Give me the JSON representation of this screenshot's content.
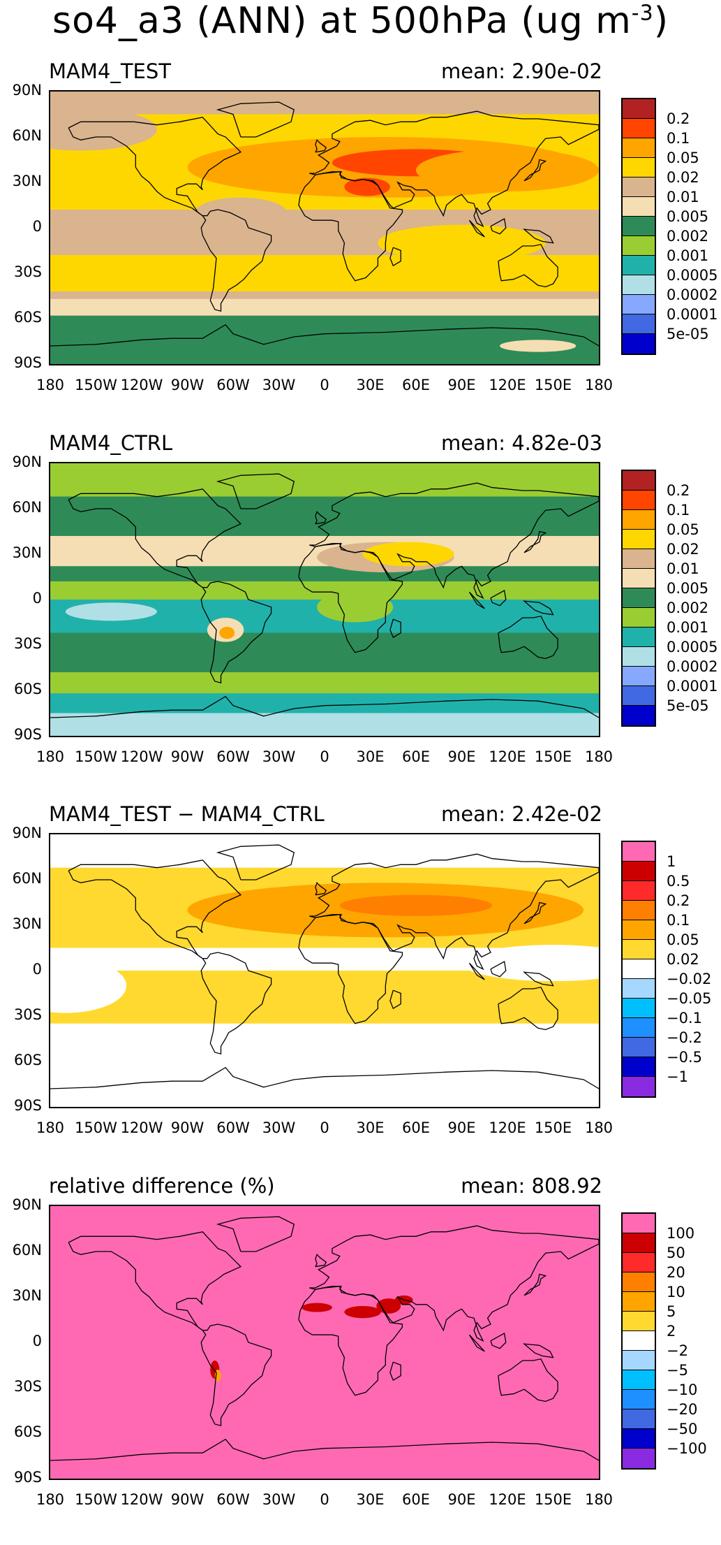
{
  "figure": {
    "title": "so4_a3 (ANN) at 500hPa (ug m",
    "title_exponent": "-3",
    "title_close": ")"
  },
  "axes": {
    "lat_labels": [
      "90N",
      "60N",
      "30N",
      "0",
      "30S",
      "60S",
      "90S"
    ],
    "lon_labels": [
      "180",
      "150W",
      "120W",
      "90W",
      "60W",
      "30W",
      "0",
      "30E",
      "60E",
      "90E",
      "120E",
      "150E",
      "180"
    ]
  },
  "panels": [
    {
      "title": "MAM4_TEST",
      "mean": "mean: 2.90e-02",
      "background_color": "#d9b48f",
      "colorbar": {
        "colors": [
          "#b22222",
          "#ff4500",
          "#ffa500",
          "#ffd700",
          "#d9b48f",
          "#f5deb3",
          "#2e8b57",
          "#9acd32",
          "#20b2aa",
          "#b0e0e6",
          "#87a8ff",
          "#4169e1",
          "#0000cd"
        ],
        "labels": [
          "0.2",
          "0.1",
          "0.05",
          "0.02",
          "0.01",
          "0.005",
          "0.002",
          "0.001",
          "0.0005",
          "0.0002",
          "0.0001",
          "5e-05"
        ]
      },
      "bands": [
        {
          "from": 90,
          "to": 75,
          "color": "#d9b48f"
        },
        {
          "from": 75,
          "to": 62,
          "color": "#ffd700"
        },
        {
          "from": 62,
          "to": 20,
          "color": "#ffd700"
        },
        {
          "from": 20,
          "to": 12,
          "color": "#ffd700"
        },
        {
          "from": 12,
          "to": -18,
          "color": "#d9b48f"
        },
        {
          "from": -18,
          "to": -42,
          "color": "#ffd700"
        },
        {
          "from": -42,
          "to": -47,
          "color": "#d9b48f"
        },
        {
          "from": -47,
          "to": -58,
          "color": "#f5deb3"
        },
        {
          "from": -58,
          "to": -90,
          "color": "#2e8b57"
        }
      ],
      "blobs": [
        {
          "lon": -160,
          "lat": 65,
          "rx": 50,
          "ry": 14,
          "color": "#d9b48f"
        },
        {
          "lon": 40,
          "lat": 40,
          "rx": 130,
          "ry": 20,
          "color": "#ffa500"
        },
        {
          "lon": 60,
          "lat": 43,
          "rx": 55,
          "ry": 9,
          "color": "#ff4500"
        },
        {
          "lon": 28,
          "lat": 27,
          "rx": 15,
          "ry": 6,
          "color": "#ff4500"
        },
        {
          "lon": 120,
          "lat": 38,
          "rx": 60,
          "ry": 14,
          "color": "#ffa500"
        },
        {
          "lon": -55,
          "lat": 10,
          "rx": 30,
          "ry": 10,
          "color": "#d9b48f"
        },
        {
          "lon": 90,
          "lat": -10,
          "rx": 55,
          "ry": 12,
          "color": "#ffd700"
        },
        {
          "lon": 140,
          "lat": -78,
          "rx": 25,
          "ry": 4,
          "color": "#f5deb3"
        }
      ]
    },
    {
      "title": "MAM4_CTRL",
      "mean": "mean: 4.82e-03",
      "background_color": "#2e8b57",
      "colorbar": {
        "colors": [
          "#b22222",
          "#ff4500",
          "#ffa500",
          "#ffd700",
          "#d9b48f",
          "#f5deb3",
          "#2e8b57",
          "#9acd32",
          "#20b2aa",
          "#b0e0e6",
          "#87a8ff",
          "#4169e1",
          "#0000cd"
        ],
        "labels": [
          "0.2",
          "0.1",
          "0.05",
          "0.02",
          "0.01",
          "0.005",
          "0.002",
          "0.001",
          "0.0005",
          "0.0002",
          "0.0001",
          "5e-05"
        ]
      },
      "bands": [
        {
          "from": 90,
          "to": 68,
          "color": "#9acd32"
        },
        {
          "from": 68,
          "to": 42,
          "color": "#2e8b57"
        },
        {
          "from": 42,
          "to": 22,
          "color": "#f5deb3"
        },
        {
          "from": 22,
          "to": 12,
          "color": "#2e8b57"
        },
        {
          "from": 12,
          "to": 0,
          "color": "#9acd32"
        },
        {
          "from": 0,
          "to": -22,
          "color": "#20b2aa"
        },
        {
          "from": -22,
          "to": -48,
          "color": "#2e8b57"
        },
        {
          "from": -48,
          "to": -62,
          "color": "#9acd32"
        },
        {
          "from": -62,
          "to": -75,
          "color": "#20b2aa"
        },
        {
          "from": -75,
          "to": -90,
          "color": "#b0e0e6"
        }
      ],
      "blobs": [
        {
          "lon": 40,
          "lat": 28,
          "rx": 45,
          "ry": 10,
          "color": "#d9b48f"
        },
        {
          "lon": 55,
          "lat": 30,
          "rx": 30,
          "ry": 8,
          "color": "#ffd700"
        },
        {
          "lon": -140,
          "lat": -8,
          "rx": 30,
          "ry": 6,
          "color": "#b0e0e6"
        },
        {
          "lon": -65,
          "lat": -20,
          "rx": 12,
          "ry": 8,
          "color": "#f5deb3"
        },
        {
          "lon": -64,
          "lat": -22,
          "rx": 5,
          "ry": 4,
          "color": "#ffa500"
        },
        {
          "lon": 20,
          "lat": -5,
          "rx": 25,
          "ry": 10,
          "color": "#9acd32"
        }
      ]
    },
    {
      "title": "MAM4_TEST − MAM4_CTRL",
      "mean": "mean: 2.42e-02",
      "background_color": "#ffffff",
      "colorbar": {
        "colors": [
          "#ff69b4",
          "#cc0000",
          "#ff2a2a",
          "#ff7f00",
          "#ffa500",
          "#ffd92f",
          "#ffffff",
          "#a6d8ff",
          "#00bfff",
          "#1e90ff",
          "#4169e1",
          "#0000cd",
          "#8a2be2"
        ],
        "labels": [
          "1",
          "0.5",
          "0.2",
          "0.1",
          "0.05",
          "0.02",
          "−0.02",
          "−0.05",
          "−0.1",
          "−0.2",
          "−0.5",
          "−1"
        ]
      },
      "bands": [
        {
          "from": 90,
          "to": 68,
          "color": "#ffffff"
        },
        {
          "from": 68,
          "to": 15,
          "color": "#ffd92f"
        },
        {
          "from": 15,
          "to": 0,
          "color": "#ffffff"
        },
        {
          "from": 0,
          "to": -35,
          "color": "#ffd92f"
        },
        {
          "from": -35,
          "to": -90,
          "color": "#ffffff"
        }
      ],
      "blobs": [
        {
          "lon": 40,
          "lat": 40,
          "rx": 130,
          "ry": 18,
          "color": "#ffa500"
        },
        {
          "lon": 60,
          "lat": 43,
          "rx": 50,
          "ry": 7,
          "color": "#ff7f00"
        },
        {
          "lon": 150,
          "lat": 5,
          "rx": 60,
          "ry": 12,
          "color": "#ffffff"
        },
        {
          "lon": -170,
          "lat": -10,
          "rx": 40,
          "ry": 18,
          "color": "#ffffff"
        }
      ]
    },
    {
      "title": "relative difference (%)",
      "mean": "mean: 808.92",
      "background_color": "#ff69b4",
      "colorbar": {
        "colors": [
          "#ff69b4",
          "#cc0000",
          "#ff2a2a",
          "#ff7f00",
          "#ffa500",
          "#ffd92f",
          "#ffffff",
          "#a6d8ff",
          "#00bfff",
          "#1e90ff",
          "#4169e1",
          "#0000cd",
          "#8a2be2"
        ],
        "labels": [
          "100",
          "50",
          "20",
          "10",
          "5",
          "2",
          "−2",
          "−5",
          "−10",
          "−20",
          "−50",
          "−100"
        ]
      },
      "bands": [],
      "blobs": [
        {
          "lon": -5,
          "lat": 23,
          "rx": 10,
          "ry": 3,
          "color": "#cc0000"
        },
        {
          "lon": 25,
          "lat": 20,
          "rx": 12,
          "ry": 4,
          "color": "#cc0000"
        },
        {
          "lon": 42,
          "lat": 24,
          "rx": 8,
          "ry": 5,
          "color": "#cc0000"
        },
        {
          "lon": 52,
          "lat": 28,
          "rx": 6,
          "ry": 3,
          "color": "#cc0000"
        },
        {
          "lon": -72,
          "lat": -18,
          "rx": 3,
          "ry": 6,
          "color": "#cc0000"
        },
        {
          "lon": -70,
          "lat": -22,
          "rx": 2,
          "ry": 4,
          "color": "#ffa500"
        }
      ]
    }
  ]
}
